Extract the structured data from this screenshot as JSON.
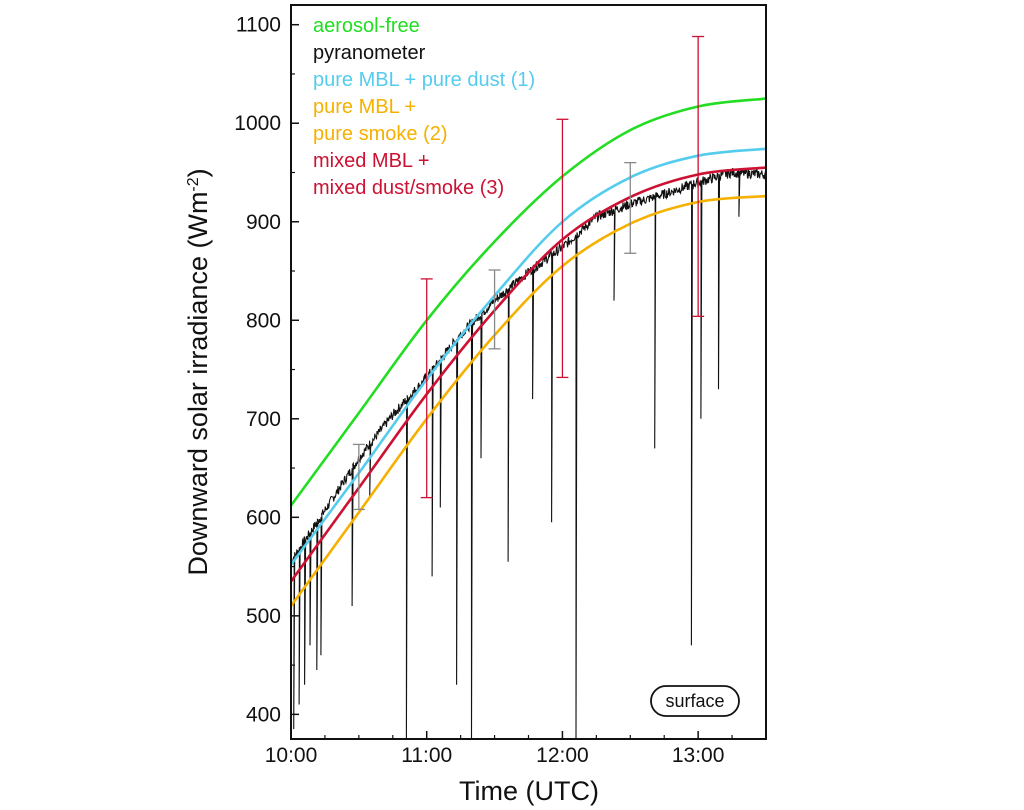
{
  "chart_data": {
    "type": "line",
    "xlabel": "Time (UTC)",
    "ylabel_main": "Downward solar irradiance (Wm",
    "ylabel_sup": "-2",
    "ylabel_close": ")",
    "xlim": [
      10.0,
      13.5
    ],
    "ylim": [
      375,
      1120
    ],
    "x_ticks": [
      {
        "value": 10.0,
        "label": "10:00"
      },
      {
        "value": 11.0,
        "label": "11:00"
      },
      {
        "value": 12.0,
        "label": "12:00"
      },
      {
        "value": 13.0,
        "label": "13:00"
      }
    ],
    "y_ticks": [
      400,
      500,
      600,
      700,
      800,
      900,
      1000,
      1100
    ],
    "grid": false,
    "legend_position": "top-left",
    "badge": "surface",
    "series": [
      {
        "name": "aerosol-free",
        "color": "#22dd22",
        "x": [
          10.0,
          10.5,
          11.0,
          11.5,
          12.0,
          12.5,
          13.0,
          13.5
        ],
        "y": [
          612,
          706,
          800,
          880,
          946,
          993,
          1017,
          1025
        ]
      },
      {
        "name": "pyranometer",
        "color": "#111111",
        "x": [
          10.0,
          10.25,
          10.5,
          10.75,
          11.0,
          11.25,
          11.5,
          11.75,
          12.0,
          12.25,
          12.5,
          12.75,
          13.0,
          13.25,
          13.5
        ],
        "y": [
          555,
          607,
          660,
          704,
          742,
          786,
          820,
          849,
          874,
          905,
          918,
          928,
          940,
          950,
          948
        ],
        "dips": [
          {
            "x": 10.02,
            "y": 385
          },
          {
            "x": 10.06,
            "y": 410
          },
          {
            "x": 10.1,
            "y": 430
          },
          {
            "x": 10.14,
            "y": 470
          },
          {
            "x": 10.19,
            "y": 445
          },
          {
            "x": 10.22,
            "y": 460
          },
          {
            "x": 10.45,
            "y": 510
          },
          {
            "x": 10.58,
            "y": 620
          },
          {
            "x": 10.85,
            "y": 375
          },
          {
            "x": 11.04,
            "y": 540
          },
          {
            "x": 11.1,
            "y": 610
          },
          {
            "x": 11.22,
            "y": 430
          },
          {
            "x": 11.33,
            "y": 375
          },
          {
            "x": 11.4,
            "y": 660
          },
          {
            "x": 11.6,
            "y": 555
          },
          {
            "x": 11.78,
            "y": 720
          },
          {
            "x": 11.92,
            "y": 595
          },
          {
            "x": 12.1,
            "y": 375
          },
          {
            "x": 12.38,
            "y": 820
          },
          {
            "x": 12.68,
            "y": 670
          },
          {
            "x": 12.95,
            "y": 470
          },
          {
            "x": 13.02,
            "y": 700
          },
          {
            "x": 13.15,
            "y": 730
          },
          {
            "x": 13.3,
            "y": 905
          }
        ]
      },
      {
        "name": "pure MBL + pure dust (1)",
        "color": "#55ccee",
        "x": [
          10.0,
          10.5,
          11.0,
          11.5,
          12.0,
          12.5,
          13.0,
          13.5
        ],
        "y": [
          552,
          645,
          740,
          825,
          900,
          945,
          967,
          974
        ]
      },
      {
        "name": "pure MBL +",
        "name_line2": "pure smoke (2)",
        "color": "#f5b000",
        "x": [
          10.0,
          10.5,
          11.0,
          11.5,
          12.0,
          12.5,
          13.0,
          13.5
        ],
        "y": [
          510,
          605,
          700,
          785,
          855,
          898,
          920,
          926
        ]
      },
      {
        "name": "mixed MBL +",
        "name_line2": "mixed dust/smoke (3)",
        "color": "#cc1133",
        "x": [
          10.0,
          10.5,
          11.0,
          11.5,
          12.0,
          12.5,
          13.0,
          13.5
        ],
        "y": [
          535,
          630,
          725,
          810,
          882,
          925,
          948,
          955
        ]
      }
    ],
    "error_bars": [
      {
        "x": 10.5,
        "y": 641,
        "low": 608,
        "high": 674,
        "color": "#888888"
      },
      {
        "x": 11.0,
        "y": 731,
        "low": 620,
        "high": 842,
        "color": "#cc1133"
      },
      {
        "x": 11.5,
        "y": 811,
        "low": 771,
        "high": 851,
        "color": "#888888"
      },
      {
        "x": 12.0,
        "y": 873,
        "low": 742,
        "high": 1004,
        "color": "#cc1133"
      },
      {
        "x": 12.5,
        "y": 914,
        "low": 868,
        "high": 960,
        "color": "#888888"
      },
      {
        "x": 13.0,
        "y": 946,
        "low": 804,
        "high": 1088,
        "color": "#cc1133"
      }
    ]
  }
}
